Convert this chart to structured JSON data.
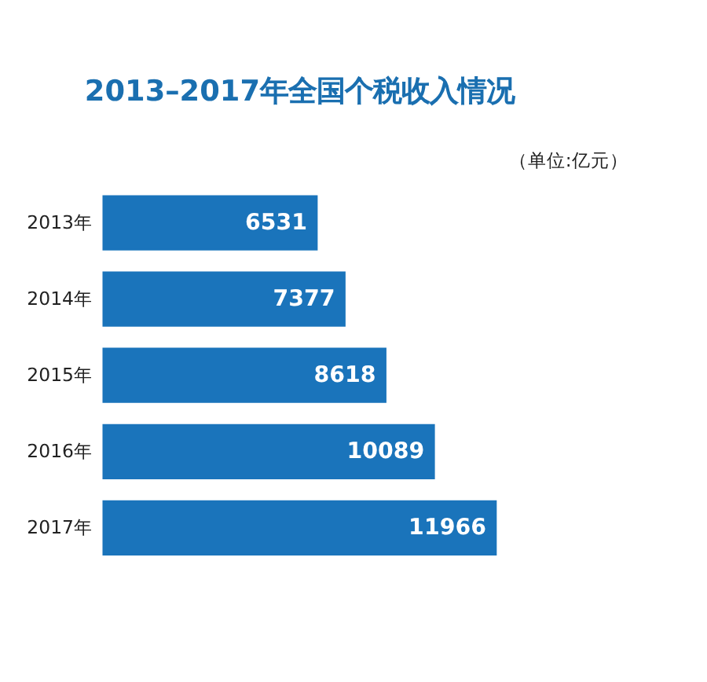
{
  "chart_data": {
    "type": "bar",
    "orientation": "horizontal",
    "title": "2013–2017年全国个税收入情况",
    "annotations": [
      "（单位:亿元）"
    ],
    "categories": [
      "2013年",
      "2014年",
      "2015年",
      "2016年",
      "2017年"
    ],
    "values": [
      6531,
      7377,
      8618,
      10089,
      11966
    ],
    "color": "#1a74bb",
    "data_labels": true,
    "grid": false
  }
}
